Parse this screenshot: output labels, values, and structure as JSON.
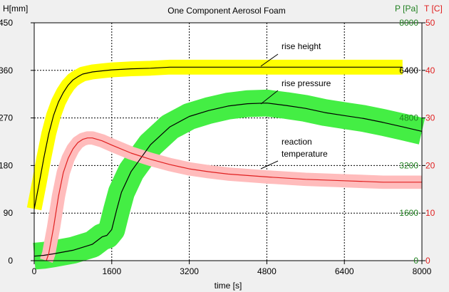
{
  "chart_data": {
    "type": "line",
    "title": "One Component Aerosol Foam",
    "xlabel": "time [s]",
    "x_axis": {
      "range": [
        0,
        8000
      ],
      "ticks": [
        0,
        1600,
        3200,
        4800,
        6400,
        8000
      ],
      "tick_labels": [
        "0",
        "1600",
        "3200",
        "4800",
        "6400",
        "8000"
      ]
    },
    "y_axes": [
      {
        "id": "height",
        "label": "H[mm]",
        "side": "left",
        "range": [
          0,
          450
        ],
        "ticks": [
          0,
          90,
          180,
          270,
          360,
          450
        ],
        "tick_labels": [
          "0",
          "90",
          "180",
          "270",
          "360",
          "450"
        ],
        "color": "#000000"
      },
      {
        "id": "pressure",
        "label": "P [Pa]",
        "side": "right",
        "range": [
          0,
          8000
        ],
        "ticks": [
          0,
          1600,
          3200,
          4800,
          6400,
          8000
        ],
        "tick_labels": [
          "0",
          "1600",
          "3200",
          "4800",
          "6400",
          "8000"
        ],
        "color": "#208020"
      },
      {
        "id": "temperature",
        "label": "T [C]",
        "side": "right",
        "range": [
          0,
          50
        ],
        "ticks": [
          0,
          10,
          20,
          30,
          40,
          50
        ],
        "tick_labels": [
          "0",
          "10",
          "20",
          "30",
          "40",
          "50"
        ],
        "color": "#e02020"
      }
    ],
    "grid": true,
    "series": [
      {
        "name": "rise height",
        "axis": "height",
        "line_color": "#000000",
        "band_color": "#ffff00",
        "band_halfwidth": 14,
        "x": [
          0,
          100,
          200,
          300,
          400,
          500,
          600,
          700,
          800,
          900,
          1000,
          1200,
          1400,
          1600,
          2000,
          2400,
          2800,
          3200,
          4000,
          4800,
          5600,
          6400,
          7200,
          7600
        ],
        "y": [
          98,
          145,
          195,
          240,
          275,
          300,
          318,
          332,
          342,
          348,
          353,
          357,
          359,
          361,
          363,
          364,
          366,
          366,
          366,
          366,
          366,
          366,
          366,
          366
        ]
      },
      {
        "name": "rise pressure",
        "axis": "pressure",
        "line_color": "#000000",
        "band_color": "#44ee44",
        "band_halfwidth": 450,
        "x": [
          0,
          200,
          400,
          800,
          1200,
          1400,
          1500,
          1600,
          1700,
          1800,
          2000,
          2400,
          2800,
          3200,
          3600,
          4000,
          4400,
          4800,
          5200,
          5600,
          6000,
          6400,
          6800,
          7200,
          7600,
          8000
        ],
        "y": [
          150,
          180,
          230,
          350,
          550,
          800,
          850,
          1050,
          1700,
          2300,
          3000,
          3900,
          4500,
          4850,
          5050,
          5200,
          5280,
          5300,
          5220,
          5120,
          4980,
          4880,
          4780,
          4650,
          4500,
          4350
        ]
      },
      {
        "name": "reaction temperature",
        "axis": "temperature",
        "line_color": "#e02020",
        "band_color": "#ffbcbc",
        "band_halfwidth": 1.4,
        "x": [
          250,
          300,
          400,
          500,
          600,
          700,
          800,
          900,
          1000,
          1100,
          1200,
          1400,
          1600,
          2000,
          2400,
          2800,
          3200,
          3600,
          4000,
          4800,
          5600,
          6400,
          7200,
          8000
        ],
        "y": [
          0,
          1.5,
          7,
          13.5,
          18.5,
          21.5,
          23.5,
          24.8,
          25.5,
          25.8,
          25.8,
          25.2,
          24.3,
          22.6,
          21.3,
          20.2,
          19.3,
          18.7,
          18.2,
          17.6,
          17.1,
          16.8,
          16.5,
          16.5
        ]
      }
    ],
    "annotations": [
      {
        "text": "rise height",
        "series": "rise height",
        "anchor_x": 4800
      },
      {
        "text": "rise pressure",
        "series": "rise pressure",
        "anchor_x": 4800
      },
      {
        "text": "reaction",
        "series": "reaction temperature",
        "anchor_x": 4800
      },
      {
        "text": "temperature",
        "series": "reaction temperature",
        "anchor_x": 4800
      }
    ],
    "right_inside_labels": [
      {
        "text": "6400",
        "axis": "pressure",
        "value": 6400,
        "color": "#000000"
      },
      {
        "text": "40",
        "axis": "temperature",
        "value": 40,
        "color": "#e02020"
      },
      {
        "text": "4800",
        "axis": "pressure",
        "value": 4800,
        "color": "#208020"
      },
      {
        "text": "30",
        "axis": "temperature",
        "value": 30,
        "color": "#e02020"
      },
      {
        "text": "3200",
        "axis": "pressure",
        "value": 3200,
        "color": "#208020"
      },
      {
        "text": "20",
        "axis": "temperature",
        "value": 20,
        "color": "#e02020"
      },
      {
        "text": "1600",
        "axis": "pressure",
        "value": 1600,
        "color": "#208020"
      },
      {
        "text": "10",
        "axis": "temperature",
        "value": 10,
        "color": "#e02020"
      },
      {
        "text": "0",
        "axis": "pressure",
        "value": 0,
        "color": "#208020"
      },
      {
        "text": "0",
        "axis": "temperature",
        "value": 0,
        "color": "#e02020"
      }
    ]
  }
}
